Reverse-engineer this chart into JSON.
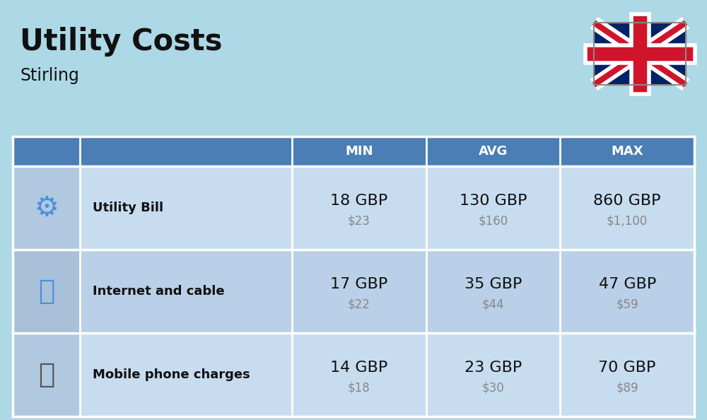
{
  "title": "Utility Costs",
  "subtitle": "Stirling",
  "background_color": "#ADD8E6",
  "header_bg_color": "#4A7EB5",
  "header_text_color": "#FFFFFF",
  "row_bg_color_1": "#C8DCF0",
  "row_bg_color_2": "#BAD0E8",
  "icon_col_bg_1": "#B0C8E0",
  "icon_col_bg_2": "#A8C0D8",
  "separator_color": "#FFFFFF",
  "columns": [
    "MIN",
    "AVG",
    "MAX"
  ],
  "rows": [
    {
      "label": "Utility Bill",
      "min_gbp": "18 GBP",
      "min_usd": "$23",
      "avg_gbp": "130 GBP",
      "avg_usd": "$160",
      "max_gbp": "860 GBP",
      "max_usd": "$1,100"
    },
    {
      "label": "Internet and cable",
      "min_gbp": "17 GBP",
      "min_usd": "$22",
      "avg_gbp": "35 GBP",
      "avg_usd": "$44",
      "max_gbp": "47 GBP",
      "max_usd": "$59"
    },
    {
      "label": "Mobile phone charges",
      "min_gbp": "14 GBP",
      "min_usd": "$18",
      "avg_gbp": "23 GBP",
      "avg_usd": "$30",
      "max_gbp": "70 GBP",
      "max_usd": "$89"
    }
  ],
  "title_fontsize": 30,
  "subtitle_fontsize": 17,
  "header_fontsize": 13,
  "label_fontsize": 13,
  "value_fontsize": 16,
  "usd_fontsize": 12,
  "fig_width": 10.0,
  "fig_height": 5.94,
  "dpi": 100
}
